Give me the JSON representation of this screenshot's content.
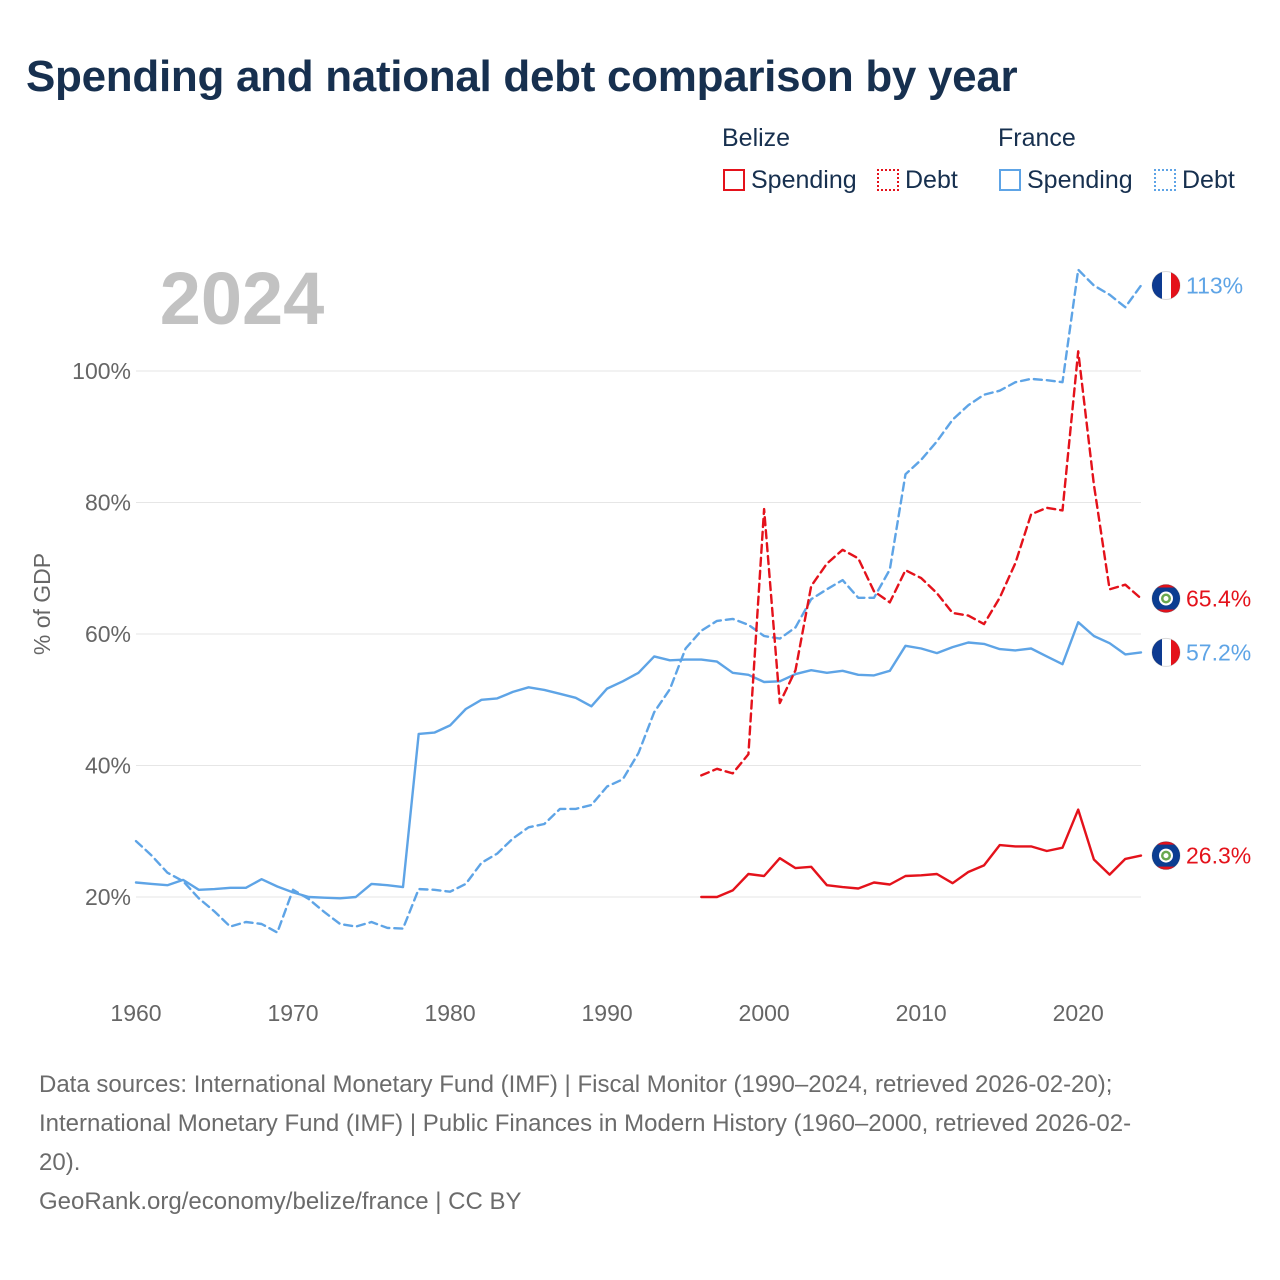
{
  "title": "Spending and national debt comparison by year",
  "legend": {
    "belize_label": "Belize",
    "france_label": "France",
    "spending_label": "Spending",
    "debt_label": "Debt"
  },
  "footer": {
    "sources_line1": "Data sources: International Monetary Fund (IMF) | Fiscal Monitor (1990–2024, retrieved 2026-02-20);",
    "sources_line2": "International Monetary Fund (IMF) | Public Finances in Modern History (1960–2000, retrieved 2026-02-",
    "sources_line3": "20).",
    "credit": "GeoRank.org/economy/belize/france | CC BY"
  },
  "colors": {
    "belize": "#e4121b",
    "france": "#5ea4e6"
  },
  "chart_data": {
    "type": "line",
    "year_watermark": "2024",
    "ylabel": "% of GDP",
    "xlim": [
      1960,
      2024
    ],
    "ylim": [
      8,
      120
    ],
    "x_ticks": [
      1960,
      1970,
      1980,
      1990,
      2000,
      2010,
      2020
    ],
    "y_ticks": [
      20,
      40,
      60,
      80,
      100
    ],
    "y_tick_labels": [
      "20%",
      "40%",
      "60%",
      "80%",
      "100%"
    ],
    "series": [
      {
        "name": "France Spending",
        "country": "France",
        "metric": "Spending",
        "style": "solid",
        "end_label": "57.2%",
        "end_value": 57.2,
        "x": [
          1960,
          1961,
          1962,
          1963,
          1964,
          1965,
          1966,
          1967,
          1968,
          1969,
          1970,
          1971,
          1972,
          1973,
          1974,
          1975,
          1976,
          1977,
          1978,
          1979,
          1980,
          1981,
          1982,
          1983,
          1984,
          1985,
          1986,
          1987,
          1988,
          1989,
          1990,
          1991,
          1992,
          1993,
          1994,
          1995,
          1996,
          1997,
          1998,
          1999,
          2000,
          2001,
          2002,
          2003,
          2004,
          2005,
          2006,
          2007,
          2008,
          2009,
          2010,
          2011,
          2012,
          2013,
          2014,
          2015,
          2016,
          2017,
          2018,
          2019,
          2020,
          2021,
          2022,
          2023,
          2024
        ],
        "values": [
          22.2,
          22.0,
          21.8,
          22.6,
          21.1,
          21.2,
          21.4,
          21.4,
          22.7,
          21.6,
          20.7,
          20.0,
          19.9,
          19.8,
          20.0,
          22.0,
          21.8,
          21.5,
          44.8,
          45.0,
          46.1,
          48.6,
          50.0,
          50.2,
          51.2,
          51.9,
          51.5,
          50.9,
          50.3,
          49.0,
          51.7,
          52.8,
          54.1,
          56.6,
          56.0,
          56.1,
          56.1,
          55.8,
          54.1,
          53.8,
          52.7,
          52.8,
          53.9,
          54.5,
          54.1,
          54.4,
          53.8,
          53.7,
          54.4,
          58.2,
          57.8,
          57.1,
          58.0,
          58.7,
          58.5,
          57.7,
          57.5,
          57.8,
          56.6,
          55.4,
          61.8,
          59.7,
          58.6,
          56.9,
          57.2
        ]
      },
      {
        "name": "France Debt",
        "country": "France",
        "metric": "Debt",
        "style": "dashed",
        "end_label": "113%",
        "end_value": 113,
        "x": [
          1960,
          1961,
          1962,
          1963,
          1964,
          1965,
          1966,
          1967,
          1968,
          1969,
          1970,
          1971,
          1972,
          1973,
          1974,
          1975,
          1976,
          1977,
          1978,
          1979,
          1980,
          1981,
          1982,
          1983,
          1984,
          1985,
          1986,
          1987,
          1988,
          1989,
          1990,
          1991,
          1992,
          1993,
          1994,
          1995,
          1996,
          1997,
          1998,
          1999,
          2000,
          2001,
          2002,
          2003,
          2004,
          2005,
          2006,
          2007,
          2008,
          2009,
          2010,
          2011,
          2012,
          2013,
          2014,
          2015,
          2016,
          2017,
          2018,
          2019,
          2020,
          2021,
          2022,
          2023,
          2024
        ],
        "values": [
          28.5,
          26.3,
          23.7,
          22.4,
          19.8,
          17.8,
          15.5,
          16.2,
          15.9,
          14.6,
          21.1,
          19.7,
          17.7,
          15.9,
          15.5,
          16.2,
          15.3,
          15.2,
          21.2,
          21.1,
          20.8,
          22.0,
          25.2,
          26.6,
          28.9,
          30.6,
          31.1,
          33.4,
          33.4,
          34.0,
          36.8,
          37.9,
          41.9,
          48.1,
          51.6,
          57.8,
          60.5,
          62.0,
          62.3,
          61.4,
          59.7,
          59.3,
          61.0,
          65.3,
          66.8,
          68.2,
          65.5,
          65.5,
          69.8,
          84.3,
          86.5,
          89.3,
          92.6,
          94.8,
          96.4,
          97.0,
          98.3,
          98.8,
          98.6,
          98.3,
          115.4,
          113.0,
          111.6,
          109.7,
          113.0
        ]
      },
      {
        "name": "Belize Debt",
        "country": "Belize",
        "metric": "Debt",
        "style": "dashed",
        "end_label": "65.4%",
        "end_value": 65.4,
        "x": [
          1996,
          1997,
          1998,
          1999,
          2000,
          2001,
          2002,
          2003,
          2004,
          2005,
          2006,
          2007,
          2008,
          2009,
          2010,
          2011,
          2012,
          2013,
          2014,
          2015,
          2016,
          2017,
          2018,
          2019,
          2020,
          2021,
          2022,
          2023,
          2024
        ],
        "values": [
          38.5,
          39.5,
          38.8,
          41.7,
          79.0,
          49.5,
          54.5,
          67.3,
          70.7,
          72.8,
          71.5,
          66.5,
          64.8,
          69.7,
          68.5,
          66.2,
          63.2,
          62.8,
          61.5,
          65.5,
          70.8,
          78.2,
          79.2,
          78.8,
          103.0,
          82.7,
          66.8,
          67.5,
          65.4
        ]
      },
      {
        "name": "Belize Spending",
        "country": "Belize",
        "metric": "Spending",
        "style": "solid",
        "end_label": "26.3%",
        "end_value": 26.3,
        "x": [
          1996,
          1997,
          1998,
          1999,
          2000,
          2001,
          2002,
          2003,
          2004,
          2005,
          2006,
          2007,
          2008,
          2009,
          2010,
          2011,
          2012,
          2013,
          2014,
          2015,
          2016,
          2017,
          2018,
          2019,
          2020,
          2021,
          2022,
          2023,
          2024
        ],
        "values": [
          20.0,
          20.0,
          21.0,
          23.5,
          23.2,
          25.9,
          24.4,
          24.6,
          21.8,
          21.5,
          21.3,
          22.2,
          21.9,
          23.2,
          23.3,
          23.5,
          22.1,
          23.8,
          24.8,
          27.9,
          27.7,
          27.7,
          27.0,
          27.5,
          33.3,
          25.7,
          23.4,
          25.8,
          26.3
        ]
      }
    ]
  }
}
